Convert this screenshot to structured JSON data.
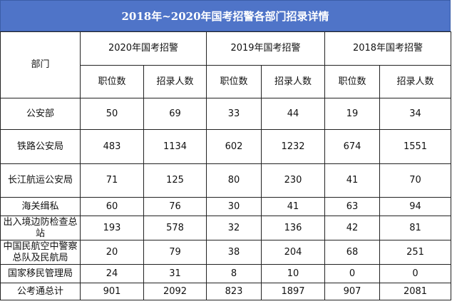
{
  "title": "2018年~2020年国考招警各部门招录详情",
  "dept_header": "部门",
  "years": [
    {
      "label": "2020年国考招警",
      "positions_label": "职位数",
      "recruits_label": "招录人数"
    },
    {
      "label": "2019年国考招警",
      "positions_label": "职位数",
      "recruits_label": "招录人数"
    },
    {
      "label": "2018年国考招警",
      "positions_label": "职位数",
      "recruits_label": "招录人数"
    }
  ],
  "rows": [
    {
      "dept": "公安部",
      "v": [
        "50",
        "69",
        "33",
        "44",
        "19",
        "34"
      ]
    },
    {
      "dept": "铁路公安局",
      "v": [
        "483",
        "1134",
        "602",
        "1232",
        "674",
        "1551"
      ]
    },
    {
      "dept": "长江航运公安局",
      "v": [
        "71",
        "125",
        "80",
        "230",
        "41",
        "70"
      ]
    },
    {
      "dept": "海关缉私",
      "v": [
        "60",
        "76",
        "30",
        "41",
        "63",
        "94"
      ]
    },
    {
      "dept": "出入境边防检查总站",
      "v": [
        "193",
        "578",
        "32",
        "136",
        "42",
        "81"
      ]
    },
    {
      "dept": "中国民航空中警察总队及民航局",
      "v": [
        "20",
        "79",
        "38",
        "204",
        "68",
        "251"
      ]
    },
    {
      "dept": "国家移民管理局",
      "v": [
        "24",
        "31",
        "8",
        "10",
        "0",
        "0"
      ]
    },
    {
      "dept": "公考通总计",
      "v": [
        "901",
        "2092",
        "823",
        "1897",
        "907",
        "2081"
      ]
    }
  ]
}
